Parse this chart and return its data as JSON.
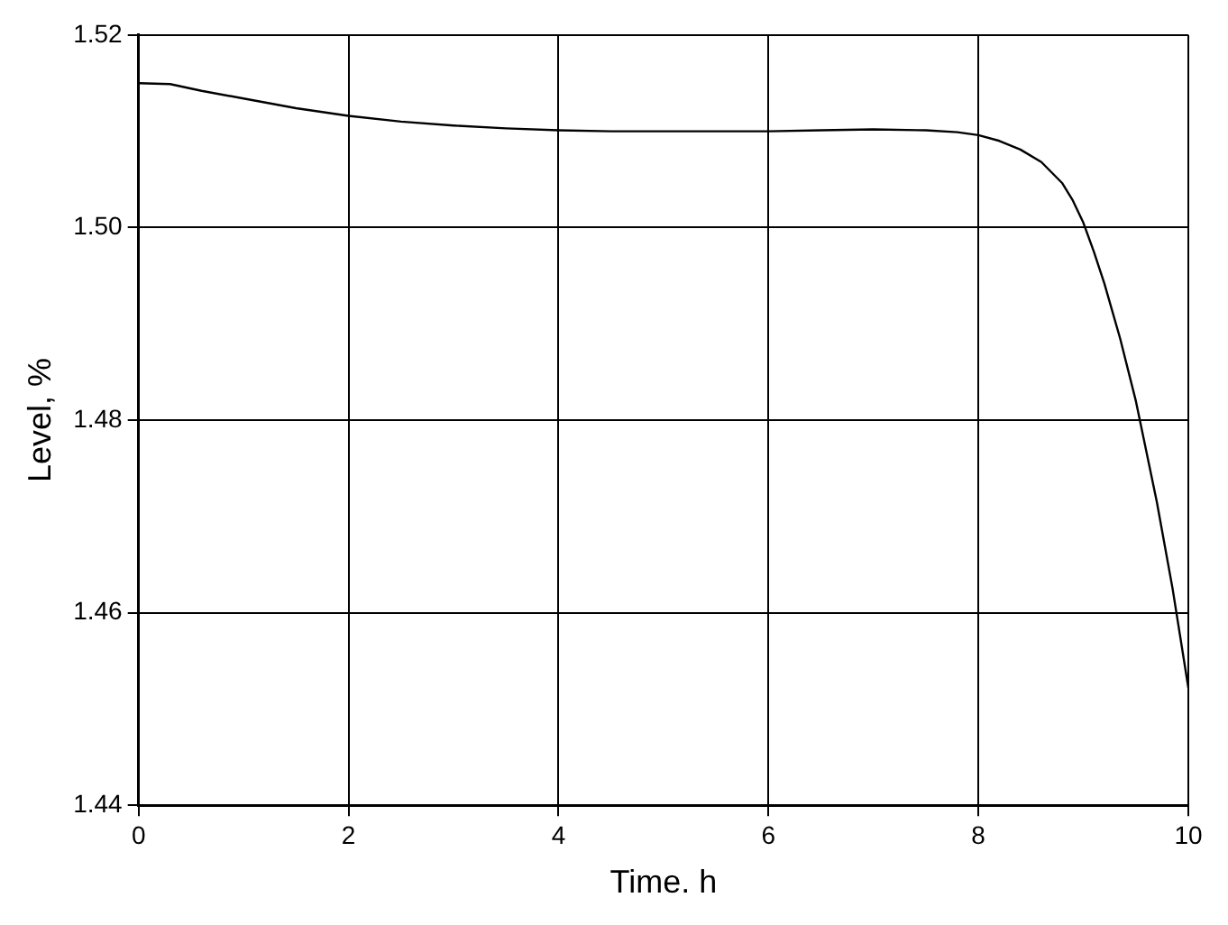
{
  "chart_data": {
    "type": "line",
    "xlabel": "Time. h",
    "ylabel": "Level, %",
    "series": [
      {
        "color": "#000000",
        "x": [
          0,
          0.3,
          0.6,
          1,
          1.5,
          2,
          2.5,
          3,
          3.5,
          4,
          4.5,
          5,
          5.5,
          6,
          6.5,
          7,
          7.5,
          7.8,
          8,
          8.2,
          8.4,
          8.6,
          8.8,
          8.9,
          9,
          9.1,
          9.2,
          9.35,
          9.5,
          9.7,
          9.85,
          10
        ],
        "values": [
          1.515,
          1.5149,
          1.5142,
          1.5134,
          1.5124,
          1.5116,
          1.511,
          1.5106,
          1.5103,
          1.5101,
          1.51,
          1.51,
          1.51,
          1.51,
          1.5101,
          1.5102,
          1.5101,
          1.5099,
          1.5096,
          1.509,
          1.5081,
          1.5068,
          1.5046,
          1.5028,
          1.5005,
          1.4975,
          1.4942,
          1.4885,
          1.482,
          1.4715,
          1.4625,
          1.4522
        ]
      }
    ],
    "xlim": [
      0,
      10
    ],
    "xticks": [
      0,
      2,
      4,
      6,
      8,
      10
    ],
    "ylim": [
      1.44,
      1.52
    ],
    "yticks": [
      1.44,
      1.46,
      1.48,
      {
        "value": 1.5,
        "label": "1.50"
      },
      1.52
    ],
    "grid": true,
    "marker": "none",
    "line_style": "solid"
  }
}
